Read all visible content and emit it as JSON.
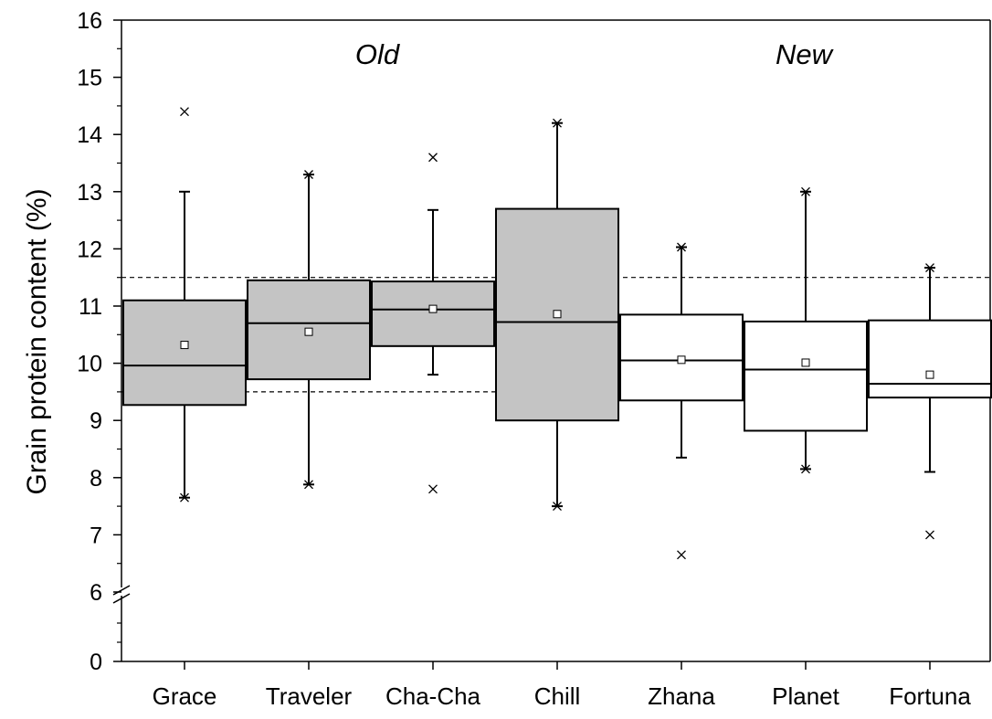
{
  "chart_data": {
    "type": "box",
    "title": "",
    "xlabel": "",
    "ylabel": "Grain protein content (%)",
    "y_ticks": [
      "0",
      "6",
      "7",
      "8",
      "9",
      "10",
      "11",
      "12",
      "13",
      "14",
      "15",
      "16"
    ],
    "axis_break": "between 0 and 6",
    "ylim": [
      6,
      16
    ],
    "group_labels": [
      {
        "label": "Old",
        "categories": [
          "Grace",
          "Traveler",
          "Cha-Cha",
          "Chill"
        ]
      },
      {
        "label": "New",
        "categories": [
          "Zhana",
          "Planet",
          "Fortuna"
        ]
      }
    ],
    "reference_lines": [
      9.5,
      11.5
    ],
    "series": [
      {
        "category": "Grace",
        "group": "Old",
        "q1": 9.27,
        "median": 9.96,
        "q3": 11.1,
        "mean": 10.32,
        "whisker_low": 7.65,
        "whisker_high": 13.0,
        "outliers": [
          7.65,
          14.4
        ]
      },
      {
        "category": "Traveler",
        "group": "Old",
        "q1": 9.72,
        "median": 10.7,
        "q3": 11.45,
        "mean": 10.55,
        "whisker_low": 7.88,
        "whisker_high": 13.3,
        "outliers": [
          7.88,
          13.3
        ]
      },
      {
        "category": "Cha-Cha",
        "group": "Old",
        "q1": 10.3,
        "median": 10.94,
        "q3": 11.43,
        "mean": 10.95,
        "whisker_low": 9.8,
        "whisker_high": 12.68,
        "outliers": [
          7.8,
          13.6
        ]
      },
      {
        "category": "Chill",
        "group": "Old",
        "q1": 9.0,
        "median": 10.72,
        "q3": 12.7,
        "mean": 10.86,
        "whisker_low": 7.5,
        "whisker_high": 14.2,
        "outliers": [
          7.5,
          14.2
        ]
      },
      {
        "category": "Zhana",
        "group": "New",
        "q1": 9.35,
        "median": 10.05,
        "q3": 10.85,
        "mean": 10.06,
        "whisker_low": 8.35,
        "whisker_high": 12.03,
        "outliers": [
          6.65,
          12.03
        ]
      },
      {
        "category": "Planet",
        "group": "New",
        "q1": 8.82,
        "median": 9.89,
        "q3": 10.73,
        "mean": 10.01,
        "whisker_low": 8.15,
        "whisker_high": 13.0,
        "outliers": [
          8.15,
          13.0
        ]
      },
      {
        "category": "Fortuna",
        "group": "New",
        "q1": 9.4,
        "median": 9.64,
        "q3": 10.75,
        "mean": 9.8,
        "whisker_low": 8.1,
        "whisker_high": 11.67,
        "outliers": [
          7.0,
          11.67
        ]
      }
    ],
    "colors": {
      "old_fill": "#c4c4c4",
      "new_fill": "#ffffff",
      "stroke": "#000000"
    },
    "grid": false,
    "legend": "none"
  }
}
